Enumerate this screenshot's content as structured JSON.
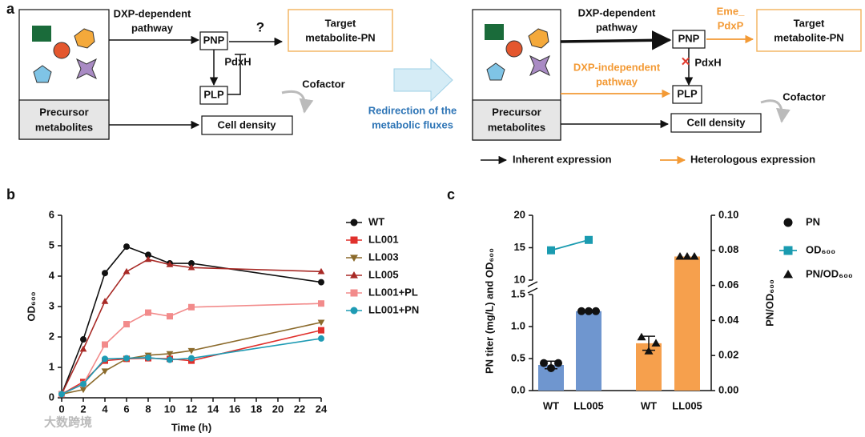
{
  "panel_labels": [
    "a",
    "b",
    "c"
  ],
  "scheme_left": {
    "source": [
      "Precursor",
      "metabolites"
    ],
    "pathway": [
      "DXP-dependent",
      "pathway"
    ],
    "pnp": "PNP",
    "unknown": "?",
    "target": [
      "Target",
      "metabolite-PN"
    ],
    "enzyme": "PdxH",
    "plp": "PLP",
    "cofactor": "Cofactor",
    "cell": "Cell density"
  },
  "redirect": [
    "Redirection of the",
    "metabolic fluxes"
  ],
  "scheme_right": {
    "source": [
      "Precursor",
      "metabolites"
    ],
    "pathway": [
      "DXP-dependent",
      "pathway"
    ],
    "pnp": "PNP",
    "heterologous_enzyme": [
      "Eme_",
      "PdxP"
    ],
    "target": [
      "Target",
      "metabolite-PN"
    ],
    "enzyme": "PdxH",
    "independent": [
      "DXP-independent",
      "pathway"
    ],
    "plp": "PLP",
    "cofactor": "Cofactor",
    "cell": "Cell density"
  },
  "arrow_legend": [
    "Inherent expression",
    "Heterologous expression"
  ],
  "watermark": "大数跨境",
  "chart_data": [
    {
      "type": "line",
      "xlabel": "Time (h)",
      "ylabel": "OD₆₀₀",
      "x": [
        0,
        2,
        4,
        6,
        8,
        10,
        12,
        24
      ],
      "xlim": [
        0,
        24
      ],
      "xticks": [
        0,
        2,
        4,
        6,
        8,
        10,
        12,
        14,
        16,
        18,
        20,
        22,
        24
      ],
      "ylim": [
        0,
        6
      ],
      "yticks": [
        0,
        1,
        2,
        3,
        4,
        5,
        6
      ],
      "series": [
        {
          "name": "WT",
          "color": "#111111",
          "marker": "circle",
          "values": [
            0.12,
            1.92,
            4.1,
            4.97,
            4.7,
            4.42,
            4.42,
            3.8
          ]
        },
        {
          "name": "LL001",
          "color": "#e0302c",
          "marker": "square",
          "values": [
            0.12,
            0.52,
            1.22,
            1.28,
            1.3,
            1.28,
            1.22,
            2.22
          ]
        },
        {
          "name": "LL003",
          "color": "#8b6a2b",
          "marker": "triangle-down",
          "values": [
            0.12,
            0.27,
            0.88,
            1.28,
            1.4,
            1.45,
            1.55,
            2.48
          ]
        },
        {
          "name": "LL005",
          "color": "#a82a26",
          "marker": "triangle",
          "values": [
            0.12,
            1.6,
            3.17,
            4.15,
            4.55,
            4.38,
            4.28,
            4.15
          ]
        },
        {
          "name": "LL001+PL",
          "color": "#f28b8b",
          "marker": "square",
          "values": [
            0.12,
            0.45,
            1.75,
            2.42,
            2.8,
            2.68,
            2.98,
            3.1
          ]
        },
        {
          "name": "LL001+PN",
          "color": "#1e9bb4",
          "marker": "circle",
          "values": [
            0.12,
            0.45,
            1.28,
            1.3,
            1.32,
            1.25,
            1.3,
            1.95
          ]
        }
      ]
    },
    {
      "type": "bar",
      "ylabel": "PN titer (mg/L) and OD₆₀₀",
      "y2label": "PN/OD₆₀₀",
      "categories": [
        "WT",
        "LL005",
        "WT",
        "LL005"
      ],
      "ylim": [
        0,
        20
      ],
      "ybreak": [
        1.5,
        10
      ],
      "yticks": [
        {
          "value": 0,
          "label": "0.0"
        },
        0.5,
        {
          "value": 1,
          "label": "1.0"
        },
        1.5,
        10,
        15,
        20
      ],
      "y2lim": [
        0,
        0.1
      ],
      "y2ticks": [
        {
          "value": 0,
          "label": "0.00"
        },
        {
          "value": 0.02,
          "label": "0.02"
        },
        {
          "value": 0.04,
          "label": "0.04"
        },
        {
          "value": 0.06,
          "label": "0.06"
        },
        {
          "value": 0.08,
          "label": "0.08"
        },
        {
          "value": 0.1,
          "label": "0.10"
        }
      ],
      "series": [
        {
          "name": "PN",
          "kind": "bar",
          "marker": "circle",
          "color": "#6f96cf",
          "values": [
            0.4,
            1.24,
            null,
            null
          ],
          "errors": [
            0.06,
            null,
            null,
            null
          ],
          "points": [
            [
              0.43,
              0.35,
              0.43
            ],
            [
              1.24,
              1.24,
              1.24
            ],
            null,
            null
          ]
        },
        {
          "name": "OD₆₀₀",
          "kind": "line",
          "marker": "square",
          "color": "#1a9bb0",
          "values": [
            14.6,
            16.2,
            null,
            null
          ]
        },
        {
          "name": "PN/OD₆₀₀",
          "kind": "bar",
          "axis": "y2",
          "marker": "triangle",
          "color": "#f6a04d",
          "values": [
            null,
            null,
            0.027,
            0.0765
          ],
          "errors": [
            null,
            null,
            0.004,
            null
          ],
          "points": [
            null,
            null,
            [
              0.0305,
              0.0225,
              0.027
            ],
            [
              0.0765,
              0.0765,
              0.0765
            ]
          ]
        }
      ]
    }
  ]
}
